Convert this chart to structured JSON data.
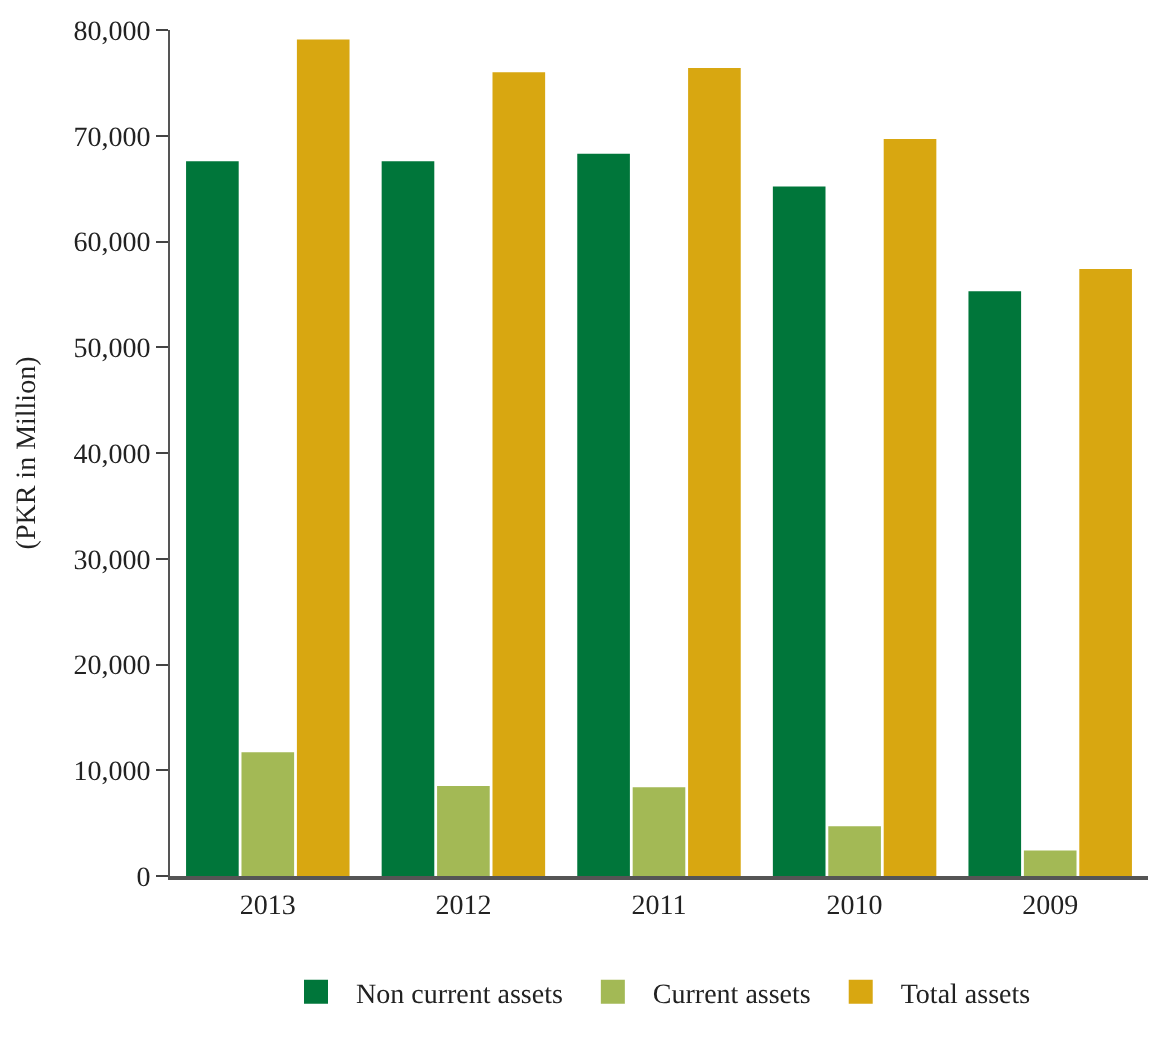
{
  "chart_data": {
    "type": "bar",
    "ylabel": "(PKR in Million)",
    "categories": [
      "2013",
      "2012",
      "2011",
      "2010",
      "2009"
    ],
    "series": [
      {
        "name": "Non current assets",
        "color": "#00763a",
        "values": [
          67600,
          67600,
          68300,
          65200,
          55300
        ]
      },
      {
        "name": "Current assets",
        "color": "#a3b955",
        "values": [
          11700,
          8500,
          8400,
          4700,
          2400
        ]
      },
      {
        "name": "Total assets",
        "color": "#d8a711",
        "values": [
          79100,
          76000,
          76400,
          69700,
          57400
        ]
      }
    ],
    "ylim": [
      0,
      80000
    ],
    "yticks": [
      {
        "value": 0,
        "label": "0"
      },
      {
        "value": 10000,
        "label": "10,000"
      },
      {
        "value": 20000,
        "label": "20,000"
      },
      {
        "value": 30000,
        "label": "30,000"
      },
      {
        "value": 40000,
        "label": "40,000"
      },
      {
        "value": 50000,
        "label": "50,000"
      },
      {
        "value": 60000,
        "label": "60,000"
      },
      {
        "value": 70000,
        "label": "70,000"
      },
      {
        "value": 80000,
        "label": "80,000"
      }
    ],
    "legend": "bottom"
  }
}
